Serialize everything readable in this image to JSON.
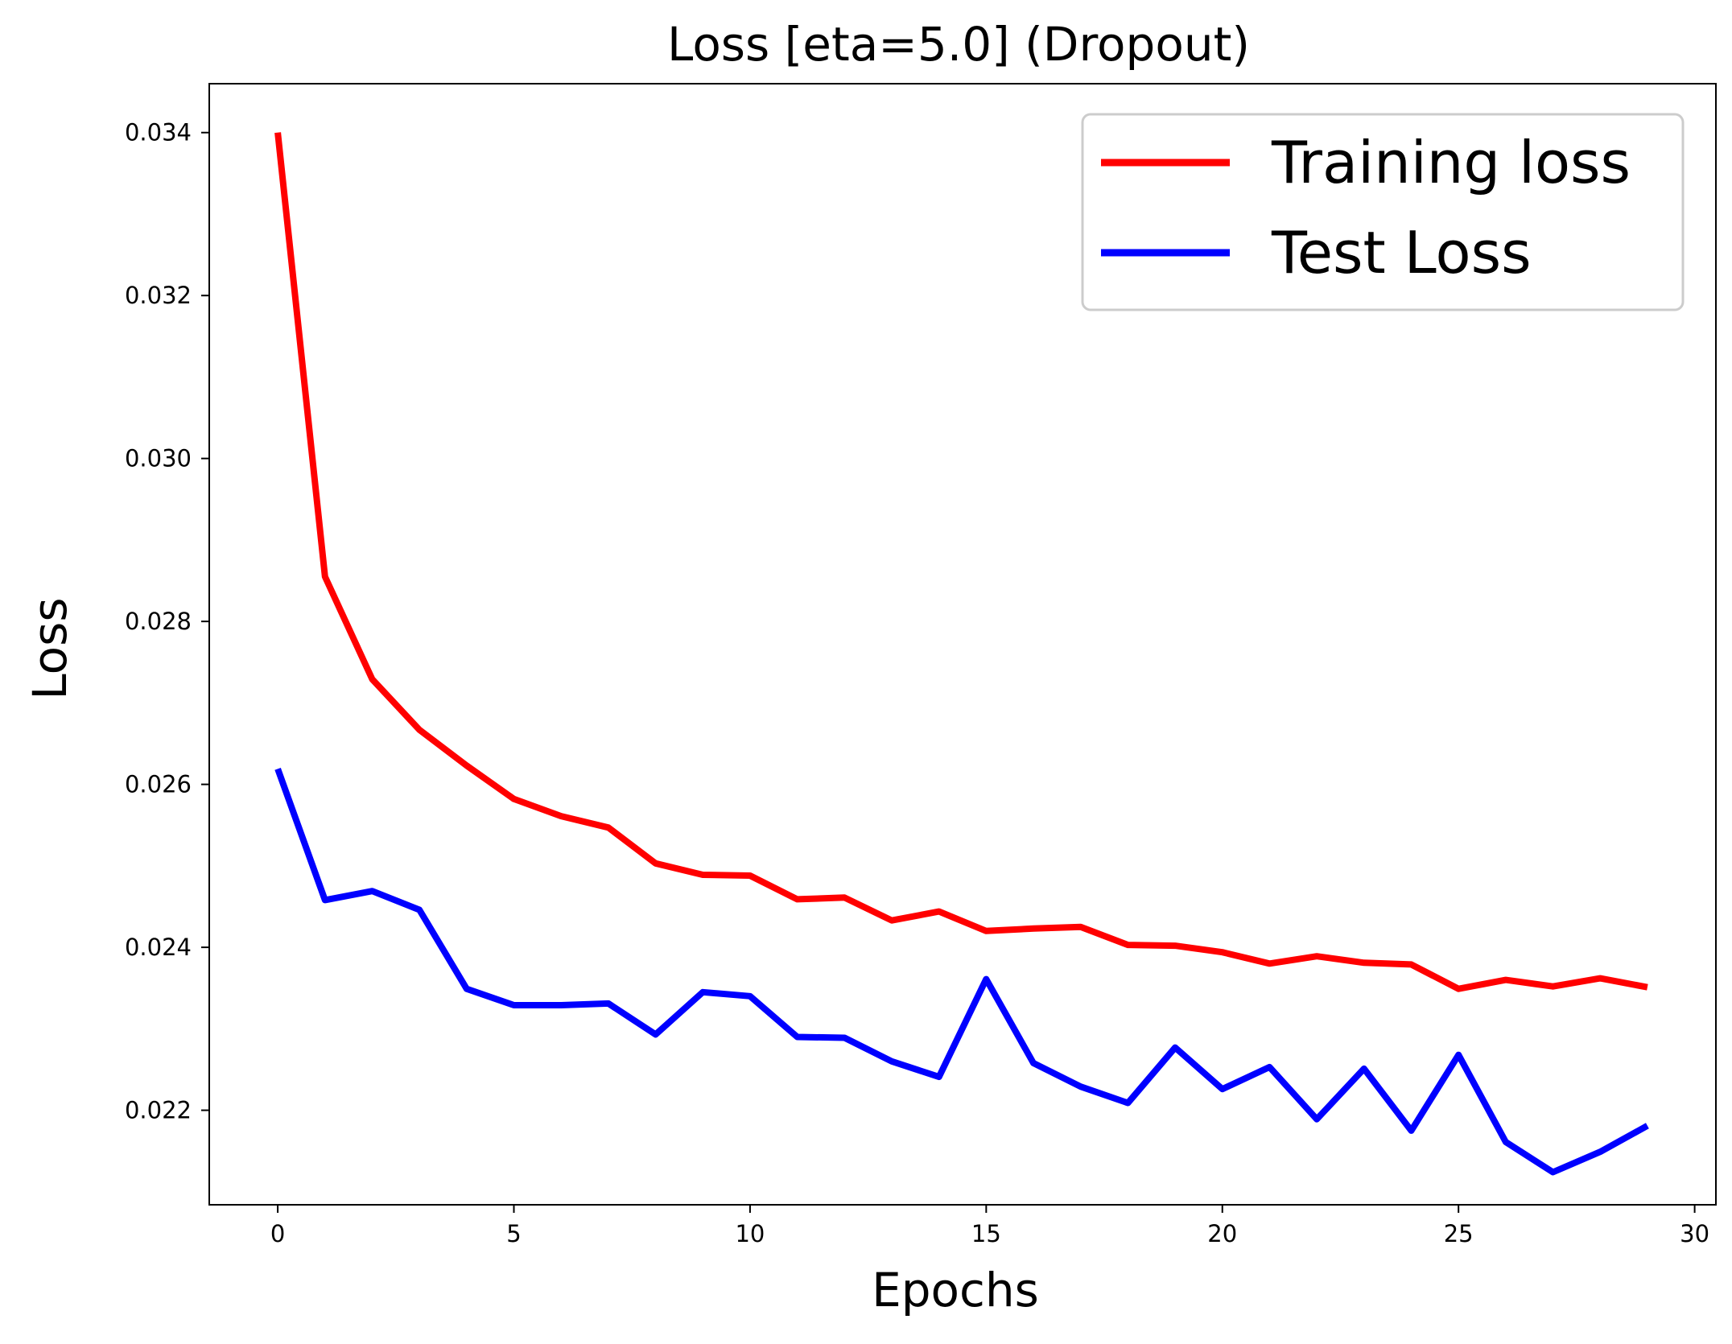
{
  "chart_data": {
    "type": "line",
    "title": "Loss [eta=5.0] (Dropout)",
    "xlabel": "Epochs",
    "ylabel": "Loss",
    "xlim": [
      -1.45,
      30.45
    ],
    "ylim": [
      0.02084,
      0.0346
    ],
    "xticks": [
      0,
      5,
      10,
      15,
      20,
      25,
      30
    ],
    "yticks": [
      0.022,
      0.024,
      0.026,
      0.028,
      0.03,
      0.032,
      0.034
    ],
    "ytick_labels": [
      "0.022",
      "0.024",
      "0.026",
      "0.028",
      "0.030",
      "0.032",
      "0.034"
    ],
    "grid": false,
    "legend_position": "top-right",
    "x": [
      0,
      1,
      2,
      3,
      4,
      5,
      6,
      7,
      8,
      9,
      10,
      11,
      12,
      13,
      14,
      15,
      16,
      17,
      18,
      19,
      20,
      21,
      22,
      23,
      24,
      25,
      26,
      27,
      28,
      29
    ],
    "series": [
      {
        "name": "Training loss",
        "color": "#ff0000",
        "values": [
          0.034,
          0.02855,
          0.02729,
          0.02667,
          0.02623,
          0.02582,
          0.02561,
          0.02547,
          0.02503,
          0.02489,
          0.02488,
          0.02459,
          0.02461,
          0.02433,
          0.02444,
          0.0242,
          0.02423,
          0.02425,
          0.02403,
          0.02402,
          0.02394,
          0.0238,
          0.02389,
          0.02381,
          0.02379,
          0.02349,
          0.0236,
          0.02352,
          0.02362,
          0.02351
        ]
      },
      {
        "name": "Test Loss",
        "color": "#0000ff",
        "values": [
          0.02619,
          0.02458,
          0.02469,
          0.02446,
          0.02349,
          0.02329,
          0.02329,
          0.02331,
          0.02293,
          0.02345,
          0.0234,
          0.0229,
          0.02289,
          0.0226,
          0.02241,
          0.02361,
          0.02258,
          0.02229,
          0.02209,
          0.02277,
          0.02226,
          0.02253,
          0.02189,
          0.02251,
          0.02175,
          0.02268,
          0.02161,
          0.02124,
          0.02149,
          0.02181
        ]
      }
    ]
  }
}
